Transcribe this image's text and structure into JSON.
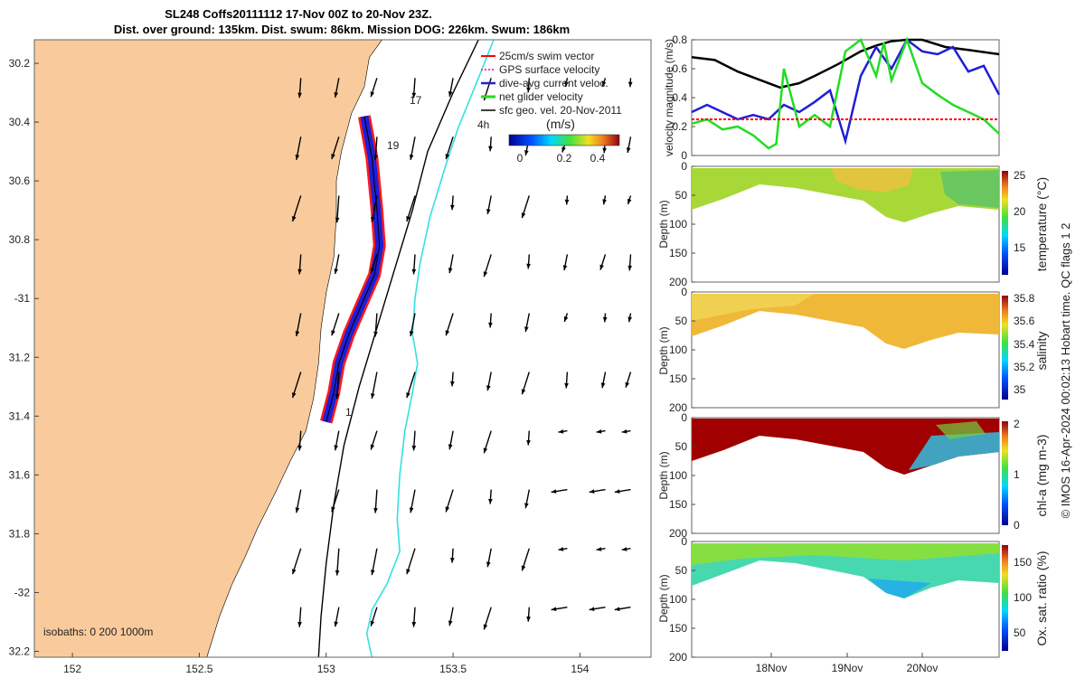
{
  "title": {
    "line1": "SL248 Coffs20111112 17-Nov 00Z to 20-Nov 23Z.",
    "line2": "Dist. over ground: 135km. Dist. swum: 86km. Mission DOG: 226km. Swum: 186km"
  },
  "credit": "© IMOS 16-Apr-2024 00:02:13 Hobart time. QC flags 1  2",
  "colors": {
    "land": "#f9cb9c",
    "velocity": "#1f1fd6",
    "glider": "#22dd22",
    "geo": "#000000",
    "swim": "#ff0000",
    "isobath_200": "#35e0e0"
  },
  "chart_data": [
    {
      "type": "scatter",
      "name": "map",
      "xlim": [
        151.85,
        154.28
      ],
      "ylim": [
        -32.22,
        -30.12
      ],
      "x_ticks": [
        152,
        152.5,
        153,
        153.5,
        154
      ],
      "x_tick_labels": [
        "152",
        "152.5",
        "153",
        "153.5",
        "154"
      ],
      "y_ticks": [
        -30.2,
        -30.4,
        -30.6,
        -30.8,
        -31,
        -31.2,
        -31.4,
        -31.6,
        -31.8,
        -32,
        -32.2
      ],
      "y_tick_labels": [
        "30.2",
        "30.4",
        "30.6",
        "30.8",
        "-31",
        "31.2",
        "31.4",
        "31.6",
        "31.8",
        "-32",
        "32.2"
      ],
      "legend": {
        "placement": "top-right",
        "entries": [
          "25cm/s swim vector",
          "GPS surface velocity",
          "dive-avg current veloc.",
          "net glider velocity",
          "sfc geo. vel. 20-Nov-2011"
        ]
      },
      "colorbar": {
        "label": "(m/s)",
        "ticks": [
          "0",
          "0.2",
          "0.4"
        ],
        "range": [
          0,
          0.5
        ]
      },
      "track_labels": [
        "17",
        "19",
        "1",
        "4h"
      ],
      "isobaths_label": "isobaths: 0   200  1000m",
      "coastline": [
        [
          153.22,
          -30.12
        ],
        [
          153.17,
          -30.18
        ],
        [
          153.15,
          -30.28
        ],
        [
          153.1,
          -30.37
        ],
        [
          153.06,
          -30.5
        ],
        [
          153.04,
          -30.6
        ],
        [
          153.04,
          -30.72
        ],
        [
          153.03,
          -30.86
        ],
        [
          153.0,
          -30.98
        ],
        [
          152.98,
          -31.1
        ],
        [
          152.97,
          -31.22
        ],
        [
          152.95,
          -31.34
        ],
        [
          152.92,
          -31.45
        ],
        [
          152.86,
          -31.55
        ],
        [
          152.8,
          -31.66
        ],
        [
          152.73,
          -31.78
        ],
        [
          152.68,
          -31.88
        ],
        [
          152.63,
          -31.97
        ],
        [
          152.58,
          -32.08
        ],
        [
          152.53,
          -32.22
        ]
      ],
      "isobath_1000": [
        [
          153.6,
          -30.12
        ],
        [
          153.5,
          -30.3
        ],
        [
          153.4,
          -30.5
        ],
        [
          153.34,
          -30.7
        ],
        [
          153.27,
          -30.9
        ],
        [
          153.2,
          -31.1
        ],
        [
          153.13,
          -31.3
        ],
        [
          153.07,
          -31.5
        ],
        [
          153.03,
          -31.7
        ],
        [
          153.0,
          -31.9
        ],
        [
          152.98,
          -32.08
        ],
        [
          152.97,
          -32.22
        ]
      ],
      "isobath_200": [
        [
          153.66,
          -30.12
        ],
        [
          153.6,
          -30.25
        ],
        [
          153.52,
          -30.42
        ],
        [
          153.47,
          -30.55
        ],
        [
          153.41,
          -30.72
        ],
        [
          153.37,
          -30.88
        ],
        [
          153.35,
          -31.0
        ],
        [
          153.34,
          -31.12
        ],
        [
          153.36,
          -31.22
        ],
        [
          153.34,
          -31.32
        ],
        [
          153.31,
          -31.45
        ],
        [
          153.29,
          -31.6
        ],
        [
          153.28,
          -31.75
        ],
        [
          153.29,
          -31.86
        ],
        [
          153.24,
          -31.97
        ],
        [
          153.18,
          -32.06
        ],
        [
          153.16,
          -32.14
        ],
        [
          153.18,
          -32.22
        ]
      ],
      "glider_track": [
        [
          153.15,
          -30.38
        ],
        [
          153.18,
          -30.52
        ],
        [
          153.2,
          -30.7
        ],
        [
          153.21,
          -30.82
        ],
        [
          153.19,
          -30.92
        ],
        [
          153.14,
          -31.02
        ],
        [
          153.09,
          -31.12
        ],
        [
          153.05,
          -31.22
        ],
        [
          153.03,
          -31.32
        ],
        [
          153.0,
          -31.42
        ]
      ],
      "velocity_grid_x": [
        152.9,
        153.05,
        153.2,
        153.35,
        153.5,
        153.65,
        153.8,
        153.95,
        154.1,
        154.2
      ],
      "velocity_grid_y": [
        -30.25,
        -30.45,
        -30.65,
        -30.85,
        -31.05,
        -31.25,
        -31.45,
        -31.65,
        -31.85,
        -32.05
      ]
    },
    {
      "type": "line",
      "name": "velocity-magnitude",
      "ylabel": "velocity magnitude (m/s)",
      "ylim": [
        0,
        0.8
      ],
      "y_ticks": [
        "0",
        "0.2",
        "0.4",
        "0.6",
        "0.8"
      ],
      "xlim": [
        17,
        21
      ],
      "series": [
        {
          "x": [
            17.0,
            17.3,
            17.6,
            17.9,
            18.15,
            18.4,
            18.6,
            18.9,
            19.2,
            19.4,
            19.6,
            19.8,
            20.0,
            20.3,
            20.6,
            21.0
          ],
          "values": [
            0.68,
            0.66,
            0.58,
            0.52,
            0.47,
            0.5,
            0.55,
            0.63,
            0.72,
            0.76,
            0.79,
            0.8,
            0.8,
            0.75,
            0.73,
            0.7
          ],
          "color": "#000000"
        },
        {
          "x": [
            17.0,
            17.2,
            17.4,
            17.6,
            17.8,
            18.0,
            18.2,
            18.4,
            18.6,
            18.8,
            19.0,
            19.2,
            19.4,
            19.6,
            19.8,
            20.0,
            20.2,
            20.4,
            20.6,
            20.8,
            21.0
          ],
          "values": [
            0.3,
            0.35,
            0.3,
            0.25,
            0.28,
            0.25,
            0.35,
            0.3,
            0.37,
            0.45,
            0.1,
            0.55,
            0.75,
            0.6,
            0.8,
            0.72,
            0.7,
            0.75,
            0.58,
            0.62,
            0.42
          ],
          "color": "#1f1fd6"
        },
        {
          "x": [
            17.0,
            17.2,
            17.4,
            17.6,
            17.8,
            18.0,
            18.1,
            18.2,
            18.4,
            18.6,
            18.8,
            19.0,
            19.2,
            19.4,
            19.5,
            19.6,
            19.8,
            20.0,
            20.2,
            20.4,
            20.6,
            20.8,
            21.0
          ],
          "values": [
            0.22,
            0.25,
            0.18,
            0.2,
            0.14,
            0.05,
            0.08,
            0.6,
            0.2,
            0.28,
            0.2,
            0.72,
            0.8,
            0.55,
            0.78,
            0.52,
            0.8,
            0.5,
            0.42,
            0.35,
            0.3,
            0.25,
            0.15
          ],
          "color": "#22dd22"
        },
        {
          "x": [
            17.0,
            21.0
          ],
          "values": [
            0.25,
            0.25
          ],
          "color": "#ff0000"
        }
      ]
    },
    {
      "type": "heatmap",
      "name": "temperature",
      "ylabel": "Depth (m)",
      "colorbar_label": "temperature (°C)",
      "colorbar_ticks": [
        "25",
        "20",
        "15"
      ],
      "colorbar_range": [
        11,
        26
      ],
      "ylim": [
        0,
        200
      ],
      "y_ticks": [
        "0",
        "50",
        "100",
        "150",
        "200"
      ],
      "value": 21
    },
    {
      "type": "heatmap",
      "name": "salinity",
      "ylabel": "Depth (m)",
      "colorbar_label": "salinity",
      "colorbar_ticks": [
        "35.8",
        "35.6",
        "35.4",
        "35.2",
        "35"
      ],
      "colorbar_range": [
        34.9,
        35.8
      ],
      "ylim": [
        0,
        200
      ],
      "y_ticks": [
        "0",
        "50",
        "100",
        "150",
        "200"
      ],
      "value": 35.55
    },
    {
      "type": "heatmap",
      "name": "chl-a",
      "ylabel": "Depth (m)",
      "colorbar_label": "chl-a (mg m-3)",
      "colorbar_ticks": [
        "2",
        "1",
        "0"
      ],
      "colorbar_range": [
        0,
        2
      ],
      "ylim": [
        0,
        200
      ],
      "y_ticks": [
        "0",
        "50",
        "100",
        "150",
        "200"
      ],
      "value": 2
    },
    {
      "type": "heatmap",
      "name": "oxygen",
      "ylabel": "Depth (m)",
      "colorbar_label": "Ox. sat. ratio (%)",
      "colorbar_ticks": [
        "150",
        "100",
        "50"
      ],
      "colorbar_range": [
        25,
        175
      ],
      "ylim": [
        0,
        200
      ],
      "y_ticks": [
        "0",
        "50",
        "100",
        "150",
        "200"
      ],
      "value": 110
    }
  ],
  "time_axis": {
    "ticks": [
      "18Nov",
      "19Nov",
      "20Nov"
    ]
  }
}
